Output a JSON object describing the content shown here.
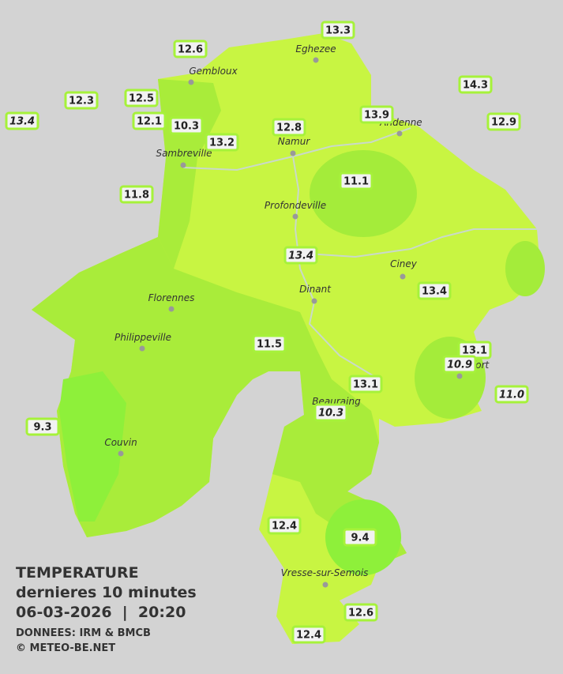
{
  "legend": {
    "title": "TEMPERATURE",
    "subtitle": "dernieres 10 minutes",
    "datetime": "06-03-2026  |  20:20",
    "source": "DONNEES: IRM & BMCB",
    "copyright": "© METEO-BE.NET"
  },
  "cities": [
    {
      "name": "Eghezee"
    },
    {
      "name": "Gembloux"
    },
    {
      "name": "Andenne"
    },
    {
      "name": "Namur"
    },
    {
      "name": "Sambreville"
    },
    {
      "name": "Profondeville"
    },
    {
      "name": "Ciney"
    },
    {
      "name": "Dinant"
    },
    {
      "name": "Florennes"
    },
    {
      "name": "Philippeville"
    },
    {
      "name": "Rochefort"
    },
    {
      "name": "Beauraing"
    },
    {
      "name": "Couvin"
    },
    {
      "name": "Vresse-sur-Semois"
    }
  ],
  "stations": [
    {
      "label": "13.3"
    },
    {
      "label": "12.6"
    },
    {
      "label": "14.3"
    },
    {
      "label": "12.3"
    },
    {
      "label": "12.5"
    },
    {
      "label": "13.4",
      "italic": true
    },
    {
      "label": "12.1"
    },
    {
      "label": "10.3"
    },
    {
      "label": "13.2"
    },
    {
      "label": "12.8"
    },
    {
      "label": "13.9"
    },
    {
      "label": "12.9"
    },
    {
      "label": "11.1"
    },
    {
      "label": "11.8"
    },
    {
      "label": "13.4",
      "italic": true
    },
    {
      "label": "13.4"
    },
    {
      "label": "11.5"
    },
    {
      "label": "13.1"
    },
    {
      "label": "10.9",
      "italic": true
    },
    {
      "label": "13.1"
    },
    {
      "label": "11.0",
      "italic": true
    },
    {
      "label": "10.3",
      "italic": true
    },
    {
      "label": "9.3"
    },
    {
      "label": "12.4"
    },
    {
      "label": "9.4"
    },
    {
      "label": "12.6"
    },
    {
      "label": "12.4"
    }
  ]
}
